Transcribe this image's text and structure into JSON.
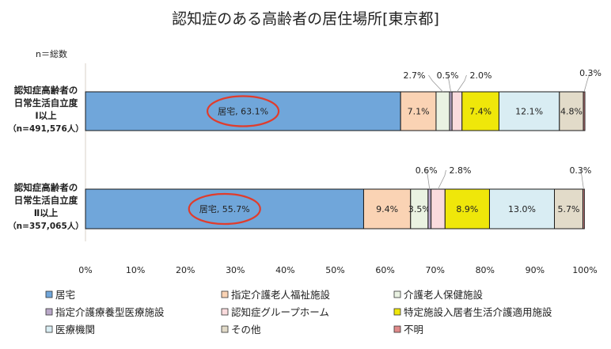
{
  "chart_data": {
    "type": "bar",
    "orientation": "horizontal",
    "stacked": "100%",
    "title": "認知症のある高齢者の居住場所[東京都]",
    "note": "n＝総数",
    "xlim": [
      0,
      100
    ],
    "x_ticks": [
      "0%",
      "10%",
      "20%",
      "30%",
      "40%",
      "50%",
      "60%",
      "70%",
      "80%",
      "90%",
      "100%"
    ],
    "grid": false,
    "legend_position": "bottom",
    "categories": [
      [
        "認知症高齢者の",
        "日常生活自立度",
        "Ⅰ以上",
        "（n=491,576人）"
      ],
      [
        "認知症高齢者の",
        "日常生活自立度",
        "Ⅱ以上",
        "（n=357,065人）"
      ]
    ],
    "series": [
      {
        "name": "居宅",
        "color": "#70a6da",
        "values": [
          63.1,
          55.7
        ],
        "labels": [
          "居宅, 63.1%",
          "居宅, 55.7%"
        ]
      },
      {
        "name": "指定介護老人福祉施設",
        "color": "#fad3b4",
        "values": [
          7.1,
          9.4
        ],
        "labels": [
          "7.1%",
          "9.4%"
        ]
      },
      {
        "name": "介護老人保健施設",
        "color": "#eaf2e2",
        "values": [
          2.7,
          3.5
        ],
        "labels": [
          "2.7%",
          "3.5%"
        ]
      },
      {
        "name": "指定介護療養型医療施設",
        "color": "#baa9c9",
        "values": [
          0.5,
          0.6
        ],
        "labels": [
          "0.5%",
          "0.6%"
        ]
      },
      {
        "name": "認知症グループホーム",
        "color": "#fadbdd",
        "values": [
          2.0,
          2.8
        ],
        "labels": [
          "2.0%",
          "2.8%"
        ]
      },
      {
        "name": "特定施設入居者生活介護適用施設",
        "color": "#efe70a",
        "values": [
          7.4,
          8.9
        ],
        "labels": [
          "7.4%",
          "8.9%"
        ]
      },
      {
        "name": "医療機関",
        "color": "#d9edf3",
        "values": [
          12.1,
          13.0
        ],
        "labels": [
          "12.1%",
          "13.0%"
        ]
      },
      {
        "name": "その他",
        "color": "#e2dbc9",
        "values": [
          4.8,
          5.7
        ],
        "labels": [
          "4.8%",
          "5.7%"
        ]
      },
      {
        "name": "不明",
        "color": "#df8a8a",
        "values": [
          0.3,
          0.3
        ],
        "labels": [
          "0.3%",
          "0.3%"
        ]
      }
    ],
    "highlight": {
      "series": "居宅",
      "color": "#e03c2c"
    }
  }
}
